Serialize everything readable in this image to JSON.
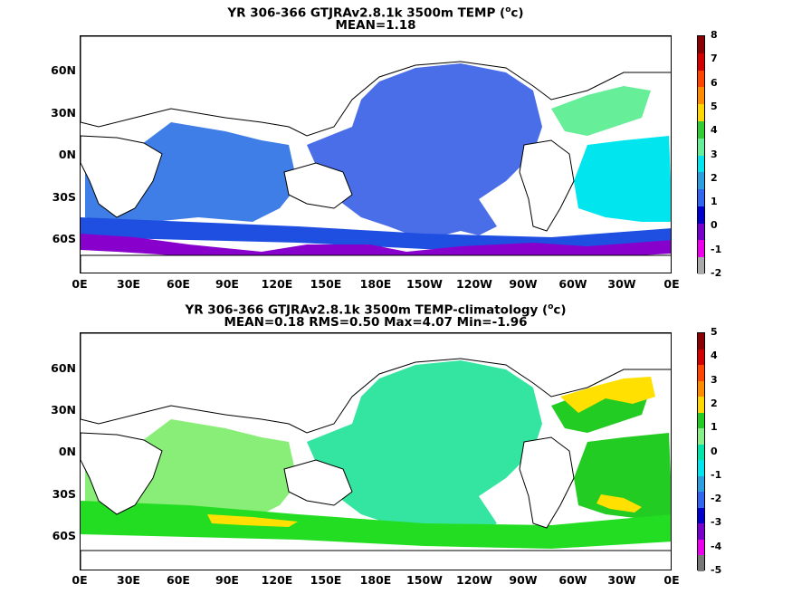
{
  "panels": [
    {
      "id": "top",
      "title_line1": "YR 306-366 GTJRAv2.8.1k 3500m TEMP (",
      "title_sup": "o",
      "title_unit_end": "c)",
      "title_line2": "MEAN=1.18",
      "colorbar": {
        "labels": [
          "8",
          "7",
          "6",
          "5",
          "4",
          "3",
          "2",
          "1",
          "0",
          "-1",
          "-2"
        ],
        "colors": [
          "#8b0000",
          "#d40000",
          "#ff4500",
          "#ff8c00",
          "#ffd700",
          "#32cd32",
          "#66ee99",
          "#00e5ee",
          "#2b9fe0",
          "#3366ee",
          "#0000cc",
          "#7700cc",
          "#ee00ee",
          "#aaaaaa"
        ]
      },
      "field": {
        "ocean_main": "#4a6ee8",
        "north_atlantic": "#66ee99",
        "south_atlantic": "#00e5ee",
        "southern_band": "#1f4fe0",
        "polar": "#8800cc"
      }
    },
    {
      "id": "bottom",
      "title_line1": "YR 306-366 GTJRAv2.8.1k 3500m TEMP-climatology (",
      "title_sup": "o",
      "title_unit_end": "c)",
      "title_line2": "MEAN=0.18   RMS=0.50   Max=4.07   Min=-1.96",
      "colorbar": {
        "labels": [
          "5",
          "4",
          "3",
          "2",
          "1",
          "0",
          "-1",
          "-2",
          "-3",
          "-4",
          "-5"
        ],
        "colors": [
          "#8b0000",
          "#d40000",
          "#ff4500",
          "#ff8c00",
          "#ffd700",
          "#22cc22",
          "#88ee88",
          "#00e6aa",
          "#00e5ee",
          "#2b9fe0",
          "#3366ee",
          "#0000cc",
          "#7700cc",
          "#ee00ee",
          "#777777"
        ]
      },
      "field": {
        "pacific": "#33e5a0",
        "indian": "#88ee77",
        "southern": "#22dd22",
        "atlantic": "#22cc22",
        "warm": "#ffe000"
      }
    }
  ],
  "x_tick_labels": [
    "0E",
    "30E",
    "60E",
    "90E",
    "120E",
    "150E",
    "180E",
    "150W",
    "120W",
    "90W",
    "60W",
    "30W",
    "0E"
  ],
  "y_tick_labels": [
    "60N",
    "30N",
    "0N",
    "30S",
    "60S"
  ]
}
